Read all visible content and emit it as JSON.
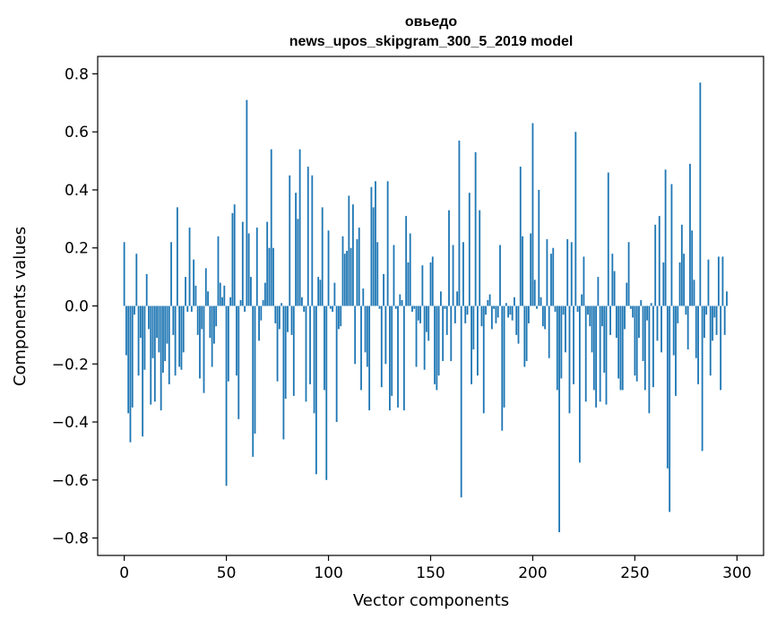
{
  "chart_data": {
    "type": "bar",
    "title": "овьедо",
    "subtitle": "news_upos_skipgram_300_5_2019 model",
    "xlabel": "Vector components",
    "ylabel": "Components values",
    "xlim": [
      -13,
      313
    ],
    "ylim": [
      -0.86,
      0.86
    ],
    "xticks": [
      0,
      50,
      100,
      150,
      200,
      250,
      300
    ],
    "yticks": [
      -0.8,
      -0.6,
      -0.4,
      -0.2,
      0.0,
      0.2,
      0.4,
      0.6,
      0.8
    ],
    "ytick_labels": [
      "−0.8",
      "−0.6",
      "−0.4",
      "−0.2",
      "0.0",
      "0.2",
      "0.4",
      "0.6",
      "0.8"
    ],
    "bar_color": "#1f77b4",
    "grid": false,
    "values": [
      0.22,
      -0.17,
      -0.37,
      -0.47,
      -0.35,
      -0.03,
      0.18,
      -0.24,
      -0.11,
      -0.45,
      -0.22,
      0.11,
      -0.08,
      -0.34,
      -0.18,
      -0.33,
      -0.11,
      -0.16,
      -0.36,
      -0.23,
      -0.19,
      -0.13,
      -0.27,
      0.22,
      -0.1,
      -0.24,
      0.34,
      -0.21,
      -0.22,
      -0.16,
      0.1,
      -0.02,
      0.27,
      -0.02,
      0.16,
      0.07,
      -0.1,
      -0.25,
      -0.08,
      -0.3,
      0.13,
      0.05,
      -0.11,
      -0.21,
      -0.13,
      -0.07,
      0.24,
      0.08,
      0.03,
      0.07,
      -0.62,
      -0.26,
      0.03,
      0.32,
      0.35,
      -0.24,
      -0.39,
      0.02,
      0.29,
      -0.02,
      0.71,
      0.25,
      0.1,
      -0.52,
      -0.44,
      0.27,
      -0.12,
      -0.05,
      0.02,
      0.08,
      0.29,
      0.2,
      0.54,
      0.2,
      -0.06,
      -0.26,
      -0.08,
      0.01,
      -0.46,
      -0.32,
      -0.09,
      0.45,
      -0.1,
      -0.31,
      0.39,
      0.3,
      0.54,
      0.03,
      -0.02,
      -0.33,
      0.48,
      -0.27,
      0.45,
      -0.37,
      -0.58,
      0.1,
      0.09,
      0.34,
      -0.29,
      -0.6,
      0.26,
      -0.01,
      -0.02,
      0.08,
      -0.4,
      -0.08,
      -0.07,
      0.24,
      0.18,
      0.19,
      0.38,
      0.2,
      0.35,
      -0.2,
      0.23,
      0.27,
      -0.29,
      0.06,
      -0.16,
      -0.21,
      -0.36,
      0.41,
      0.34,
      0.43,
      0.22,
      -0.01,
      -0.28,
      0.11,
      -0.2,
      0.43,
      -0.36,
      -0.31,
      0.21,
      -0.01,
      -0.35,
      0.04,
      0.02,
      -0.36,
      0.31,
      0.15,
      0.25,
      -0.02,
      -0.01,
      -0.21,
      -0.05,
      -0.06,
      0.14,
      -0.22,
      -0.09,
      -0.12,
      0.15,
      0.17,
      -0.27,
      -0.29,
      -0.24,
      0.05,
      -0.19,
      -0.01,
      -0.1,
      0.33,
      -0.19,
      0.21,
      -0.06,
      0.05,
      0.57,
      -0.66,
      0.22,
      -0.06,
      -0.03,
      0.39,
      -0.27,
      -0.15,
      0.53,
      -0.24,
      0.33,
      -0.07,
      -0.37,
      -0.03,
      0.02,
      0.04,
      -0.08,
      -0.01,
      -0.06,
      -0.04,
      0.21,
      -0.43,
      -0.35,
      0.01,
      -0.04,
      -0.03,
      -0.05,
      0.03,
      -0.1,
      -0.13,
      0.48,
      0.24,
      -0.21,
      -0.19,
      -0.06,
      0.25,
      0.63,
      0.09,
      -0.01,
      0.4,
      0.03,
      -0.07,
      -0.08,
      0.23,
      -0.18,
      0.18,
      0.2,
      -0.02,
      -0.29,
      -0.78,
      -0.25,
      -0.03,
      -0.16,
      0.23,
      -0.37,
      0.22,
      -0.27,
      0.6,
      -0.02,
      -0.54,
      0.04,
      0.17,
      -0.33,
      -0.03,
      -0.07,
      -0.16,
      -0.29,
      -0.35,
      0.1,
      -0.33,
      -0.07,
      -0.23,
      -0.34,
      0.46,
      -0.1,
      0.18,
      0.12,
      -0.11,
      -0.25,
      -0.29,
      -0.29,
      -0.08,
      0.08,
      0.22,
      -0.01,
      -0.04,
      -0.24,
      -0.26,
      -0.11,
      0.02,
      -0.19,
      -0.29,
      -0.05,
      -0.37,
      0.01,
      -0.28,
      0.28,
      -0.12,
      0.31,
      -0.16,
      0.15,
      0.47,
      -0.56,
      -0.71,
      0.42,
      -0.17,
      -0.31,
      -0.06,
      0.15,
      0.28,
      0.18,
      -0.03,
      -0.15,
      0.49,
      0.26,
      0.09,
      -0.18,
      -0.27,
      0.77,
      -0.5,
      -0.11,
      -0.03,
      0.16,
      -0.24,
      -0.12,
      -0.04,
      -0.1,
      0.17,
      -0.29,
      0.17,
      -0.1,
      0.05
    ]
  }
}
